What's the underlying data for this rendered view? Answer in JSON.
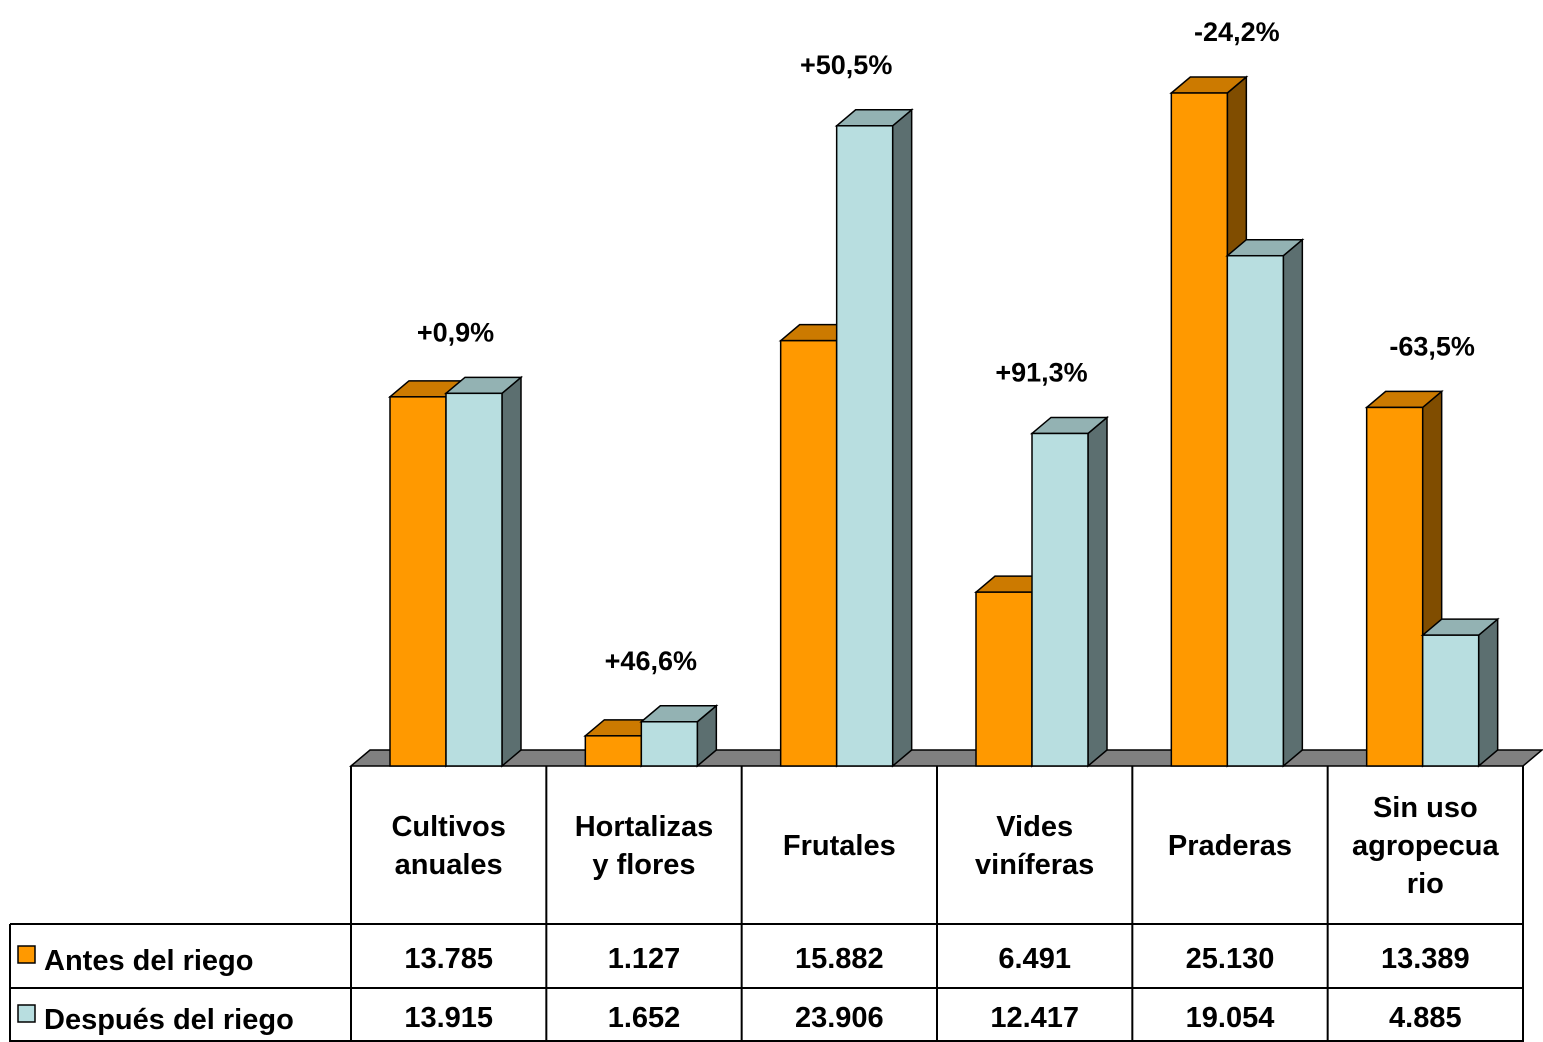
{
  "chart_data": {
    "type": "bar",
    "style": "3d-clustered-column-with-data-table",
    "categories": [
      [
        "Cultivos",
        "anuales"
      ],
      [
        "Hortalizas",
        "y flores"
      ],
      [
        "Frutales"
      ],
      [
        "Vides",
        "viníferas"
      ],
      [
        "Praderas"
      ],
      [
        "Sin uso",
        "agropecua",
        "rio"
      ]
    ],
    "series": [
      {
        "name": "Antes del riego",
        "color": "#FF9900",
        "values": [
          13785,
          1127,
          15882,
          6491,
          25130,
          13389
        ],
        "labels": [
          "13.785",
          "1.127",
          "15.882",
          "6.491",
          "25.130",
          "13.389"
        ]
      },
      {
        "name": "Después del riego",
        "color": "#B8DEE0",
        "values": [
          13915,
          1652,
          23906,
          12417,
          19054,
          4885
        ],
        "labels": [
          "13.915",
          "1.652",
          "23.906",
          "12.417",
          "19.054",
          "4.885"
        ]
      }
    ],
    "annotations": [
      "+0,9%",
      "+46,6%",
      "+50,5%",
      "+91,3%",
      "-24,2%",
      "-63,5%"
    ],
    "ylim": [
      0,
      25130
    ],
    "grid": false,
    "legend": "data-table-left"
  }
}
